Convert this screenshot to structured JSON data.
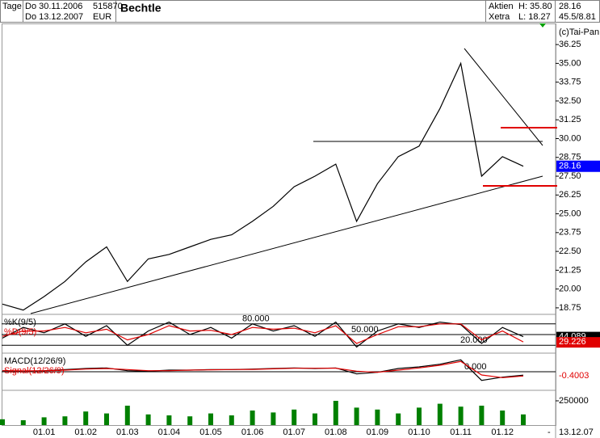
{
  "header": {
    "period": "Tage",
    "from": "Do 30.11.2006",
    "to": "Do 13.12.2007",
    "wkn": "515870",
    "currency": "EUR",
    "name": "Bechtle",
    "kind": "Aktien",
    "exchange": "Xetra",
    "high": "H: 35.80",
    "low": "L: 18.27",
    "last": "28.16",
    "range": "45.5/8.81",
    "copyright": "(c)Tai-Pan",
    "date": "13.12.07",
    "dash": "-"
  },
  "chart_data": [
    {
      "type": "line",
      "color": "#000000",
      "values": [
        19.0,
        18.6,
        19.5,
        20.5,
        21.8,
        22.8,
        20.5,
        22.0,
        22.3,
        22.8,
        23.3,
        23.6,
        24.5,
        25.5,
        26.8,
        27.5,
        28.3,
        24.5,
        27.0,
        28.8,
        29.5,
        32.0,
        35.0,
        27.5,
        28.8,
        28.16
      ],
      "ylim": [
        18.37,
        37.6
      ],
      "yticks": [
        18.75,
        {
          "value": 20,
          "label": "20.00"
        },
        21.25,
        {
          "value": 22.5,
          "label": "22.50"
        },
        23.75,
        {
          "value": 25,
          "label": "25.00"
        },
        26.25,
        {
          "value": 27.5,
          "label": "27.50"
        },
        28.75,
        {
          "value": 30,
          "label": "30.00"
        },
        31.25,
        {
          "value": 32.5,
          "label": "32.50"
        },
        33.75,
        {
          "value": 35,
          "label": "35.00"
        },
        36.25
      ],
      "grid": false
    },
    {
      "type": "line",
      "series": [
        {
          "name": "%K(9/5)",
          "color": "#000000",
          "values": [
            40,
            70,
            55,
            80,
            45,
            75,
            20,
            60,
            85,
            50,
            70,
            40,
            80,
            60,
            75,
            45,
            85,
            15,
            60,
            80,
            70,
            85,
            78,
            25,
            70,
            44.089
          ]
        },
        {
          "name": "%D(9/5)",
          "color": "#e00000",
          "values": [
            45,
            60,
            60,
            70,
            55,
            65,
            35,
            50,
            75,
            60,
            62,
            50,
            70,
            65,
            68,
            55,
            75,
            25,
            50,
            72,
            72,
            80,
            80,
            35,
            60,
            29.226
          ]
        }
      ],
      "ylim": [
        0,
        100
      ],
      "yticks": [
        {
          "value": 20,
          "label": "20.000"
        },
        {
          "value": 50,
          "label": "50.000"
        },
        {
          "value": 80,
          "label": "80.000"
        }
      ],
      "grid": true
    },
    {
      "type": "line",
      "series": [
        {
          "name": "MACD(12/26/9)",
          "color": "#000000",
          "values": [
            0.1,
            0.05,
            0.1,
            0.2,
            0.3,
            0.35,
            0.1,
            0.05,
            0.15,
            0.15,
            0.2,
            0.2,
            0.25,
            0.3,
            0.35,
            0.3,
            0.35,
            -0.2,
            -0.05,
            0.3,
            0.45,
            0.7,
            1.1,
            -0.8,
            -0.5,
            -0.3145
          ]
        },
        {
          "name": "Signal(12/26/9)",
          "color": "#e00000",
          "values": [
            0.1,
            0.08,
            0.08,
            0.15,
            0.25,
            0.3,
            0.2,
            0.1,
            0.1,
            0.15,
            0.18,
            0.2,
            0.22,
            0.27,
            0.32,
            0.32,
            0.33,
            0.05,
            -0.05,
            0.15,
            0.35,
            0.6,
            0.95,
            -0.3,
            -0.55,
            -0.4003
          ]
        }
      ],
      "ylim": [
        -1.5,
        1.5
      ],
      "yticks": [
        {
          "value": 0,
          "label": "0.000"
        }
      ],
      "grid": true
    },
    {
      "type": "bar",
      "color": "#008000",
      "categories": [
        null,
        null,
        "01.01",
        null,
        "01.02",
        null,
        "01.03",
        null,
        "01.04",
        null,
        "01.05",
        null,
        "01.06",
        null,
        "01.07",
        null,
        "01.08",
        null,
        "01.09",
        null,
        "01.10",
        null,
        "01.11",
        null,
        "01.12",
        null
      ],
      "values": [
        60000,
        50000,
        80000,
        90000,
        140000,
        120000,
        200000,
        110000,
        100000,
        90000,
        120000,
        100000,
        150000,
        130000,
        160000,
        120000,
        250000,
        180000,
        160000,
        120000,
        180000,
        220000,
        190000,
        200000,
        150000,
        110000
      ],
      "ylim": [
        0,
        350000
      ],
      "yticks": [
        250000
      ],
      "grid": false
    }
  ]
}
